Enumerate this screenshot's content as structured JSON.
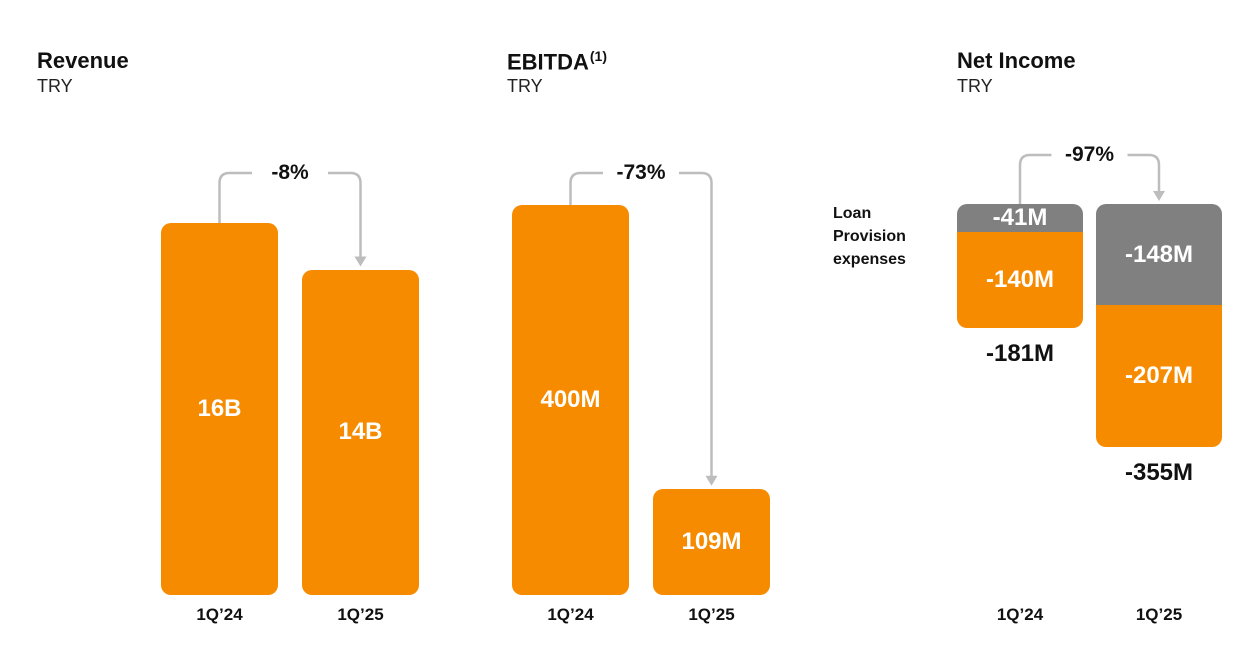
{
  "chart_data": [
    {
      "type": "bar",
      "title": "Revenue",
      "subtitle": "TRY",
      "annotation": "-8%",
      "categories": [
        "1Q’24",
        "1Q’25"
      ],
      "values": [
        16000000000,
        14000000000
      ],
      "value_labels": [
        "16B",
        "14B"
      ],
      "color": "#f68b00"
    },
    {
      "type": "bar",
      "title": "EBITDA",
      "title_note": "(1)",
      "subtitle": "TRY",
      "annotation": "-73%",
      "categories": [
        "1Q’24",
        "1Q’25"
      ],
      "values": [
        400000000,
        109000000
      ],
      "value_labels": [
        "400M",
        "109M"
      ],
      "color": "#f68b00"
    },
    {
      "type": "stacked_bar",
      "title": "Net Income",
      "subtitle": "TRY",
      "annotation": "-97%",
      "categories": [
        "1Q’24",
        "1Q’25"
      ],
      "series": [
        {
          "name": "Loan Provision expenses",
          "color": "#808080",
          "values": [
            -41000000,
            -148000000
          ],
          "value_labels": [
            "-41M",
            "-148M"
          ]
        },
        {
          "color": "#f68b00",
          "values": [
            -140000000,
            -207000000
          ],
          "value_labels": [
            "-140M",
            "-207M"
          ]
        }
      ],
      "totals": [
        -181000000,
        -355000000
      ],
      "total_labels": [
        "-181M",
        "-355M"
      ]
    }
  ]
}
